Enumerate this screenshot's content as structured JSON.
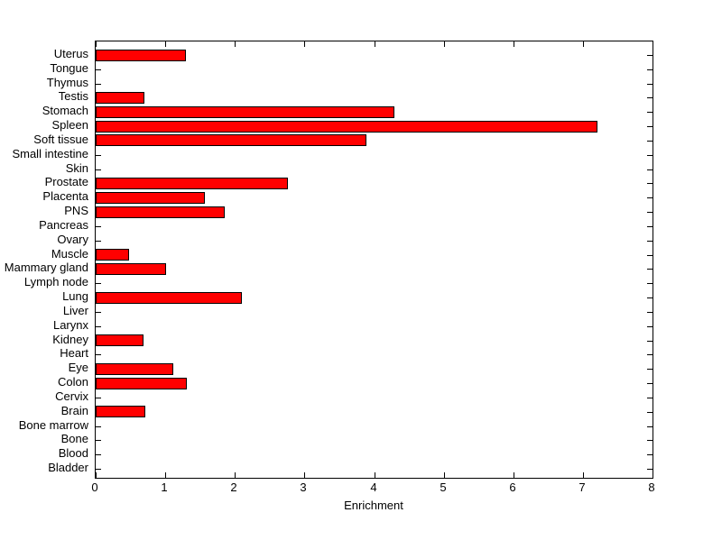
{
  "figure": {
    "background_color": "#FFFFFF",
    "axes_color": "#000000",
    "text_color": "#000000"
  },
  "chart_data": {
    "type": "bar",
    "orientation": "horizontal",
    "title": "",
    "xlabel": "Enrichment",
    "ylabel": "",
    "xlim": [
      0,
      8
    ],
    "xticks": [
      0,
      1,
      2,
      3,
      4,
      5,
      6,
      7,
      8
    ],
    "grid": false,
    "legend": null,
    "bar_color": "#FF0000",
    "bar_edge_color": "#000000",
    "categories": [
      "Uterus",
      "Tongue",
      "Thymus",
      "Testis",
      "Stomach",
      "Spleen",
      "Soft tissue",
      "Small intestine",
      "Skin",
      "Prostate",
      "Placenta",
      "PNS",
      "Pancreas",
      "Ovary",
      "Muscle",
      "Mammary gland",
      "Lymph node",
      "Lung",
      "Liver",
      "Larynx",
      "Kidney",
      "Heart",
      "Eye",
      "Colon",
      "Cervix",
      "Brain",
      "Bone marrow",
      "Bone",
      "Blood",
      "Bladder"
    ],
    "values": [
      1.27,
      0,
      0,
      0.67,
      4.26,
      7.18,
      3.87,
      0,
      0,
      2.74,
      1.54,
      1.83,
      0,
      0,
      0.45,
      0.98,
      0,
      2.07,
      0,
      0,
      0.66,
      0,
      1.09,
      1.28,
      0,
      0.69,
      0,
      0,
      0,
      0
    ]
  }
}
